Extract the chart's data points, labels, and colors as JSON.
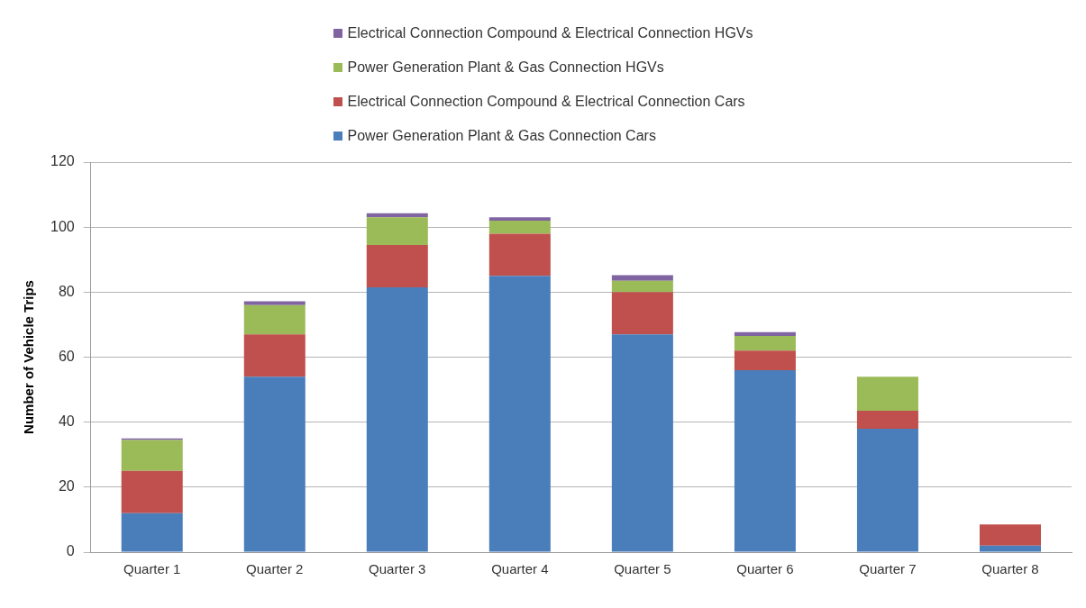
{
  "chart_data": {
    "type": "bar",
    "stacked": true,
    "ylabel": "Number of Vehicle Trips",
    "categories": [
      "Quarter 1",
      "Quarter 2",
      "Quarter 3",
      "Quarter 4",
      "Quarter 5",
      "Quarter 6",
      "Quarter 7",
      "Quarter 8"
    ],
    "series": [
      {
        "name": "Power Generation Plant & Gas Connection Cars",
        "color": "#4a7ebb",
        "values": [
          12,
          54,
          81.5,
          85,
          67,
          56,
          38,
          2
        ]
      },
      {
        "name": "Electrical Connection Compound & Electrical Connection Cars",
        "color": "#c0504d",
        "values": [
          13,
          13,
          13,
          13,
          13,
          6,
          5.5,
          6.5
        ]
      },
      {
        "name": "Power Generation Plant & Gas Connection HGVs",
        "color": "#9bbb59",
        "values": [
          9.5,
          9,
          8.5,
          4,
          3.5,
          4.5,
          10.5,
          0
        ]
      },
      {
        "name": "Electrical Connection Compound & Electrical Connection HGVs",
        "color": "#8064a2",
        "values": [
          0.5,
          1.2,
          1.3,
          1,
          1.7,
          1.2,
          0,
          0
        ]
      }
    ],
    "ylim": [
      0,
      120
    ],
    "yticks": [
      0,
      20,
      40,
      60,
      80,
      100,
      120
    ],
    "grid": "y",
    "legend": "top"
  }
}
